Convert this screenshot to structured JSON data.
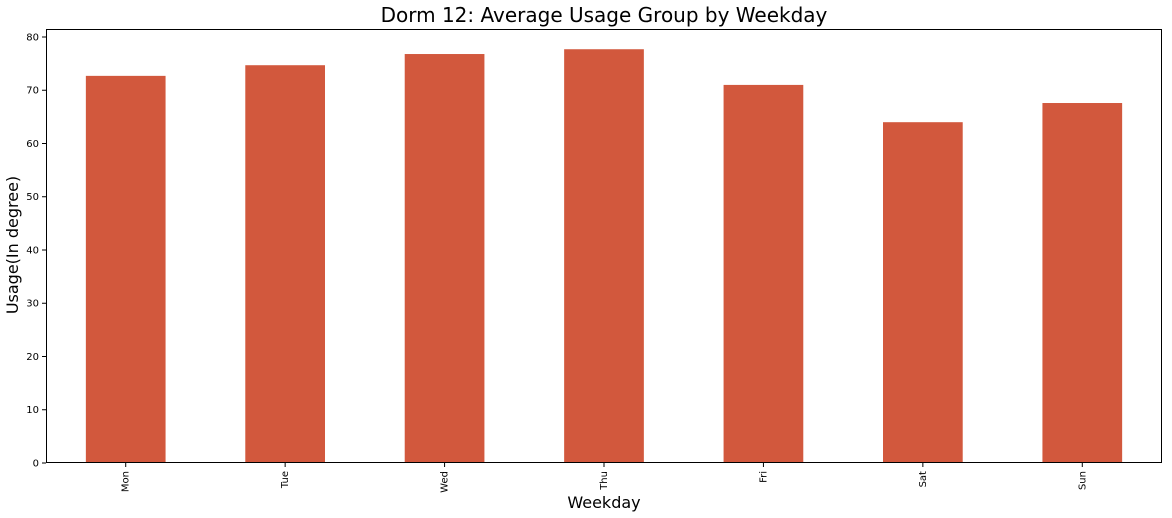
{
  "chart_data": {
    "type": "bar",
    "title": "Dorm 12: Average Usage Group by Weekday",
    "xlabel": "Weekday",
    "ylabel": "Usage(In degree)",
    "categories": [
      "Mon",
      "Tue",
      "Wed",
      "Thu",
      "Fri",
      "Sat",
      "Sun"
    ],
    "values": [
      72.7,
      74.7,
      76.8,
      77.7,
      71.0,
      64.0,
      67.6
    ],
    "ylim": [
      0,
      81.5
    ],
    "yticks": [
      0,
      10,
      20,
      30,
      40,
      50,
      60,
      70,
      80
    ],
    "bar_color": "#d2583d",
    "grid": false,
    "legend": "none"
  }
}
